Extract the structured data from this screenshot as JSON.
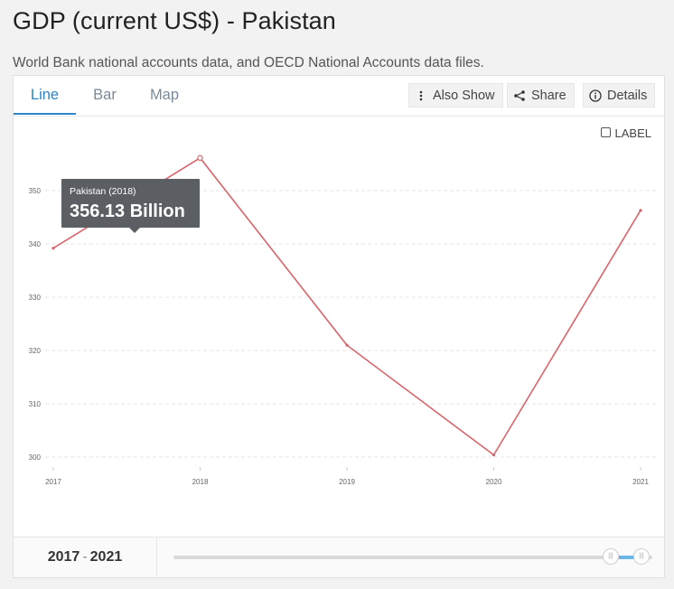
{
  "page": {
    "title": "GDP (current US$) - Pakistan",
    "subtitle": "World Bank national accounts data, and OECD National Accounts data files."
  },
  "tabs": [
    {
      "label": "Line",
      "active": true
    },
    {
      "label": "Bar",
      "active": false
    },
    {
      "label": "Map",
      "active": false
    }
  ],
  "toolbar": {
    "also_show": {
      "label": "Also Show",
      "icon": "vertical-dots-icon"
    },
    "share": {
      "label": "Share",
      "icon": "share-icon"
    },
    "details": {
      "label": "Details",
      "icon": "info-icon"
    }
  },
  "label_toggle": {
    "label": "LABEL",
    "checked": false
  },
  "tooltip": {
    "title": "Pakistan (2018)",
    "value": "356.13 Billion"
  },
  "range": {
    "start": "2017",
    "end": "2021"
  },
  "colors": {
    "line": "#d9646a",
    "accent": "#2a86c8",
    "tooltip_bg": "#5b5f63",
    "slider_fill": "#6ab7e6"
  },
  "chart_data": {
    "type": "line",
    "title": "",
    "xlabel": "",
    "ylabel": "",
    "x": [
      2017,
      2018,
      2019,
      2020,
      2021
    ],
    "series": [
      {
        "name": "Pakistan",
        "values": [
          339.2,
          356.13,
          321.0,
          300.4,
          346.3
        ]
      }
    ],
    "ylim": [
      298.5,
      363
    ],
    "yticks": [
      300,
      310,
      320,
      330,
      340,
      350
    ],
    "grid": true,
    "legend": "none",
    "unit": "Billion"
  }
}
